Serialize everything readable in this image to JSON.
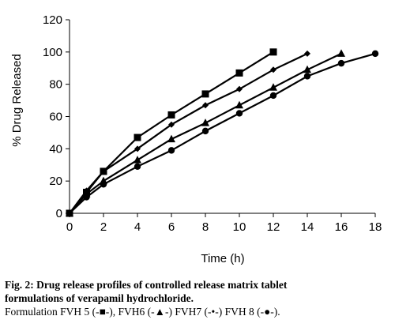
{
  "chart_data": {
    "type": "line",
    "xlabel": "Time (h)",
    "ylabel": "% Drug Released",
    "xlim": [
      0,
      18
    ],
    "ylim": [
      0,
      120
    ],
    "xticks": [
      "0",
      "2",
      "4",
      "6",
      "8",
      "10",
      "12",
      "14",
      "16",
      "18"
    ],
    "yticks": [
      "0",
      "20",
      "40",
      "60",
      "80",
      "100",
      "120"
    ],
    "grid": false,
    "legend": "none",
    "series": [
      {
        "name": "FVH 5",
        "marker": "square",
        "color": "#000000",
        "x": [
          0,
          1,
          2,
          4,
          6,
          8,
          10,
          12
        ],
        "y": [
          0,
          13,
          26,
          47,
          61,
          74,
          87,
          100
        ]
      },
      {
        "name": "FVH6",
        "marker": "triangle",
        "color": "#000000",
        "x": [
          0,
          1,
          2,
          4,
          6,
          8,
          10,
          12,
          14,
          16
        ],
        "y": [
          0,
          12,
          20,
          33,
          46,
          56,
          67,
          78,
          89,
          99
        ]
      },
      {
        "name": "FVH7",
        "marker": "diamond",
        "color": "#000000",
        "x": [
          0,
          1,
          2,
          4,
          6,
          8,
          10,
          12,
          14
        ],
        "y": [
          0,
          14,
          26,
          40,
          55,
          67,
          77,
          89,
          99
        ]
      },
      {
        "name": "FVH 8",
        "marker": "circle",
        "color": "#000000",
        "x": [
          0,
          1,
          2,
          4,
          6,
          8,
          10,
          12,
          14,
          16,
          18
        ],
        "y": [
          0,
          10,
          18,
          29,
          39,
          51,
          62,
          73,
          85,
          93,
          99
        ]
      }
    ]
  },
  "caption": {
    "line1": "Fig. 2: Drug release profiles of controlled release matrix tablet",
    "line2": "formulations of verapamil hydrochloride.",
    "line3": "Formulation FVH 5 (-■-), FVH6 (-▲-) FVH7 (-•-) FVH 8 (-●-)."
  }
}
